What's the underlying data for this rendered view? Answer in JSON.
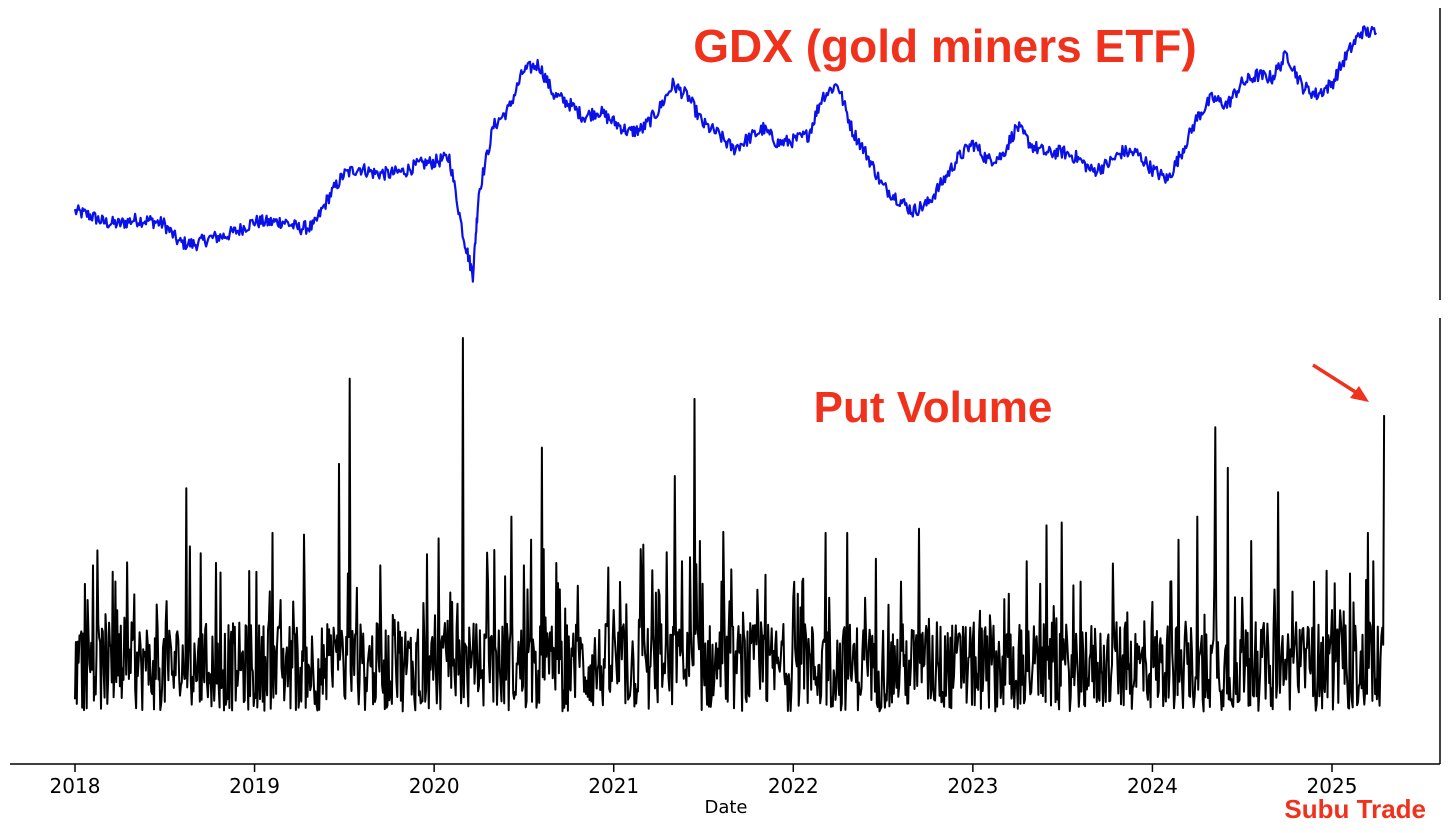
{
  "chart_data": [
    {
      "type": "line",
      "title": "",
      "xlabel": "",
      "ylabel": "",
      "y_axis": "hidden",
      "color": "#0a10e8",
      "series": [
        {
          "x": [
            "2018-01-01",
            "2018-02-01",
            "2018-03-01",
            "2018-04-01",
            "2018-05-01",
            "2018-06-01",
            "2018-07-01",
            "2018-08-01",
            "2018-09-01",
            "2018-10-01",
            "2018-11-01",
            "2018-12-01",
            "2019-01-01",
            "2019-02-01",
            "2019-03-01",
            "2019-04-01",
            "2019-05-01",
            "2019-06-01",
            "2019-07-01",
            "2019-08-01",
            "2019-09-01",
            "2019-10-01",
            "2019-11-01",
            "2019-12-01",
            "2020-01-01",
            "2020-02-01",
            "2020-03-01",
            "2020-03-20",
            "2020-04-01",
            "2020-05-01",
            "2020-06-01",
            "2020-07-01",
            "2020-08-01",
            "2020-09-01",
            "2020-10-01",
            "2020-11-01",
            "2020-12-01",
            "2021-01-01",
            "2021-02-01",
            "2021-03-01",
            "2021-04-01",
            "2021-05-01",
            "2021-06-01",
            "2021-07-01",
            "2021-08-01",
            "2021-09-01",
            "2021-10-01",
            "2021-11-01",
            "2021-12-01",
            "2022-01-01",
            "2022-02-01",
            "2022-03-01",
            "2022-04-01",
            "2022-05-01",
            "2022-06-01",
            "2022-07-01",
            "2022-08-01",
            "2022-09-01",
            "2022-10-01",
            "2022-11-01",
            "2022-12-01",
            "2023-01-01",
            "2023-02-01",
            "2023-03-01",
            "2023-04-01",
            "2023-05-01",
            "2023-06-01",
            "2023-07-01",
            "2023-08-01",
            "2023-09-01",
            "2023-10-01",
            "2023-11-01",
            "2023-12-01",
            "2024-01-01",
            "2024-02-01",
            "2024-03-01",
            "2024-04-01",
            "2024-05-01",
            "2024-06-01",
            "2024-07-01",
            "2024-08-01",
            "2024-09-01",
            "2024-10-01",
            "2024-11-01",
            "2024-12-01",
            "2025-01-01",
            "2025-02-01",
            "2025-03-01",
            "2025-04-01"
          ],
          "values": [
            23.5,
            23.0,
            22.2,
            22.0,
            22.5,
            22.4,
            22.0,
            19.8,
            19.6,
            20.3,
            20.6,
            21.3,
            22.3,
            22.2,
            22.3,
            21.5,
            21.7,
            25.2,
            27.8,
            28.6,
            28.0,
            27.9,
            28.2,
            29.0,
            29.3,
            29.8,
            20.5,
            16.0,
            25.7,
            33.5,
            35.5,
            40.0,
            40.8,
            37.2,
            36.2,
            34.6,
            35.3,
            34.0,
            32.8,
            33.2,
            35.3,
            38.4,
            37.0,
            33.8,
            32.6,
            30.8,
            32.0,
            33.2,
            31.5,
            31.8,
            32.5,
            37.0,
            38.5,
            33.0,
            30.0,
            26.5,
            25.0,
            23.5,
            24.4,
            27.0,
            29.7,
            31.5,
            29.5,
            30.0,
            33.5,
            31.2,
            30.3,
            30.5,
            29.8,
            28.2,
            29.0,
            30.5,
            30.3,
            28.4,
            27.2,
            30.5,
            34.5,
            36.8,
            36.0,
            38.5,
            39.5,
            39.2,
            42.0,
            38.2,
            37.2,
            38.5,
            42.0,
            44.6,
            44.5
          ]
        }
      ],
      "ylim": [
        14,
        46
      ]
    },
    {
      "type": "line",
      "title": "",
      "xlabel": "Date",
      "ylabel": "",
      "y_axis": "hidden",
      "color": "#000000",
      "x_ticks": [
        "2018",
        "2019",
        "2020",
        "2021",
        "2022",
        "2023",
        "2024",
        "2025"
      ],
      "xlim": [
        2017.97,
        2025.6
      ],
      "ylim": [
        0,
        100
      ],
      "series": [
        {
          "x": [
            2018.0,
            2018.06,
            2018.1,
            2018.17,
            2018.3,
            2018.45,
            2018.61,
            2018.62,
            2018.7,
            2018.8,
            2018.9,
            2019.07,
            2019.1,
            2019.25,
            2019.4,
            2019.45,
            2019.47,
            2019.52,
            2019.53,
            2019.7,
            2019.8,
            2020.0,
            2020.1,
            2020.16,
            2020.2,
            2020.3,
            2020.43,
            2020.5,
            2020.6,
            2020.61,
            2020.8,
            2021.0,
            2021.15,
            2021.25,
            2021.34,
            2021.38,
            2021.45,
            2021.48,
            2021.6,
            2021.8,
            2022.0,
            2022.18,
            2022.2,
            2022.3,
            2022.4,
            2022.6,
            2022.7,
            2022.8,
            2023.0,
            2023.2,
            2023.3,
            2023.45,
            2023.6,
            2023.8,
            2024.0,
            2024.1,
            2024.25,
            2024.3,
            2024.35,
            2024.42,
            2024.5,
            2024.55,
            2024.7,
            2024.8,
            2024.9,
            2025.0,
            2025.1,
            2025.2,
            2025.23,
            2025.25,
            2025.27,
            2025.29
          ],
          "values": [
            11,
            20,
            44,
            32,
            16,
            16,
            16,
            63,
            47,
            14,
            18,
            12,
            52,
            12,
            11,
            25,
            69,
            42,
            90,
            44,
            30,
            22,
            35,
            100,
            24,
            40,
            56,
            44,
            73,
            48,
            39,
            33,
            48,
            38,
            66,
            45,
            85,
            50,
            40,
            38,
            36,
            52,
            36,
            52,
            36,
            40,
            53,
            30,
            26,
            37,
            45,
            34,
            40,
            30,
            35,
            40,
            56,
            27,
            78,
            68,
            36,
            50,
            62,
            30,
            40,
            33,
            42,
            52,
            45,
            11,
            21,
            81
          ]
        }
      ]
    }
  ],
  "annotations": {
    "gdx_label": "GDX (gold miners ETF)",
    "put_label": "Put Volume",
    "watermark": "Subu Trade"
  },
  "colors": {
    "gdx_line": "#0a10e8",
    "put_line": "#000000",
    "annotation": "#f0311c"
  }
}
